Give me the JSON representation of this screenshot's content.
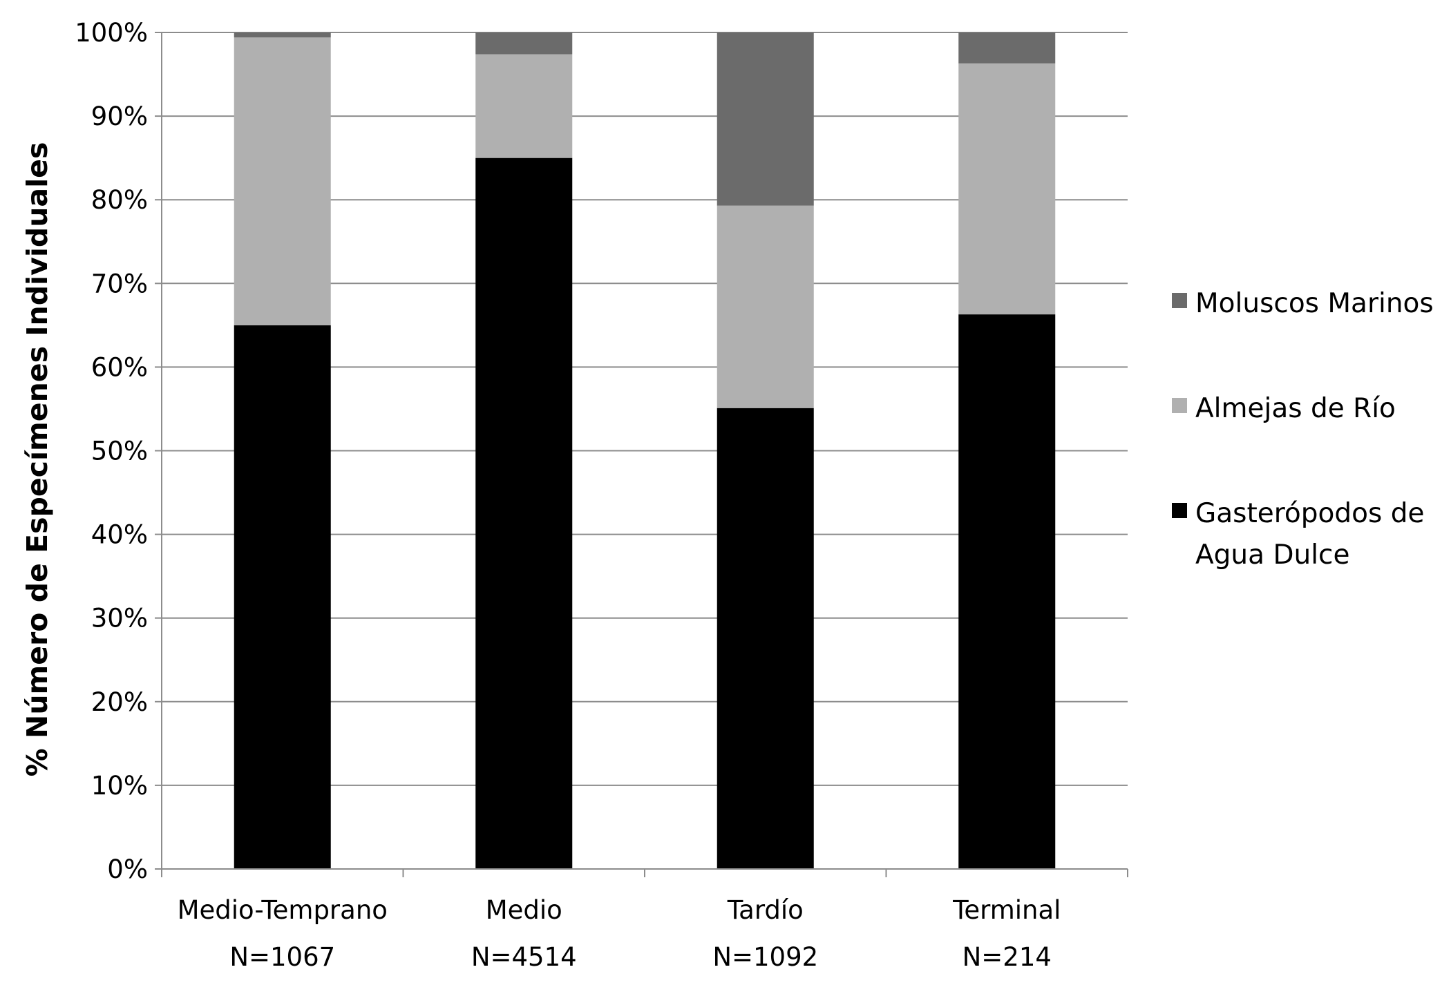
{
  "chart_data": {
    "type": "bar",
    "stacked": true,
    "title": "",
    "xlabel": "",
    "ylabel": "% Número de Especímenes Individuales",
    "ylim": [
      0,
      100
    ],
    "y_ticks": [
      "0%",
      "10%",
      "20%",
      "30%",
      "40%",
      "50%",
      "60%",
      "70%",
      "80%",
      "90%",
      "100%"
    ],
    "grid": "horizontal",
    "legend_position": "right",
    "categories": [
      "Medio-Temprano",
      "Medio",
      "Tardío",
      "Terminal"
    ],
    "category_counts": [
      "N=1067",
      "N=4514",
      "N=1092",
      "N=214"
    ],
    "series": [
      {
        "name": "Gasterópodos de Agua Dulce",
        "color": "#000000",
        "values": [
          65,
          85,
          55.1,
          66.3
        ]
      },
      {
        "name": "Almejas de Río",
        "color": "#b0b0b0",
        "values": [
          34.4,
          12.4,
          24.2,
          30
        ]
      },
      {
        "name": "Moluscos Marinos",
        "color": "#6b6b6b",
        "values": [
          0.6,
          2.6,
          20.7,
          3.7
        ]
      }
    ],
    "legend_order": [
      2,
      1,
      0
    ]
  },
  "legend": {
    "marinos": "Moluscos Marinos",
    "almejas": "Almejas de Río",
    "gasteropodos": "Gasterópodos de Agua Dulce"
  }
}
